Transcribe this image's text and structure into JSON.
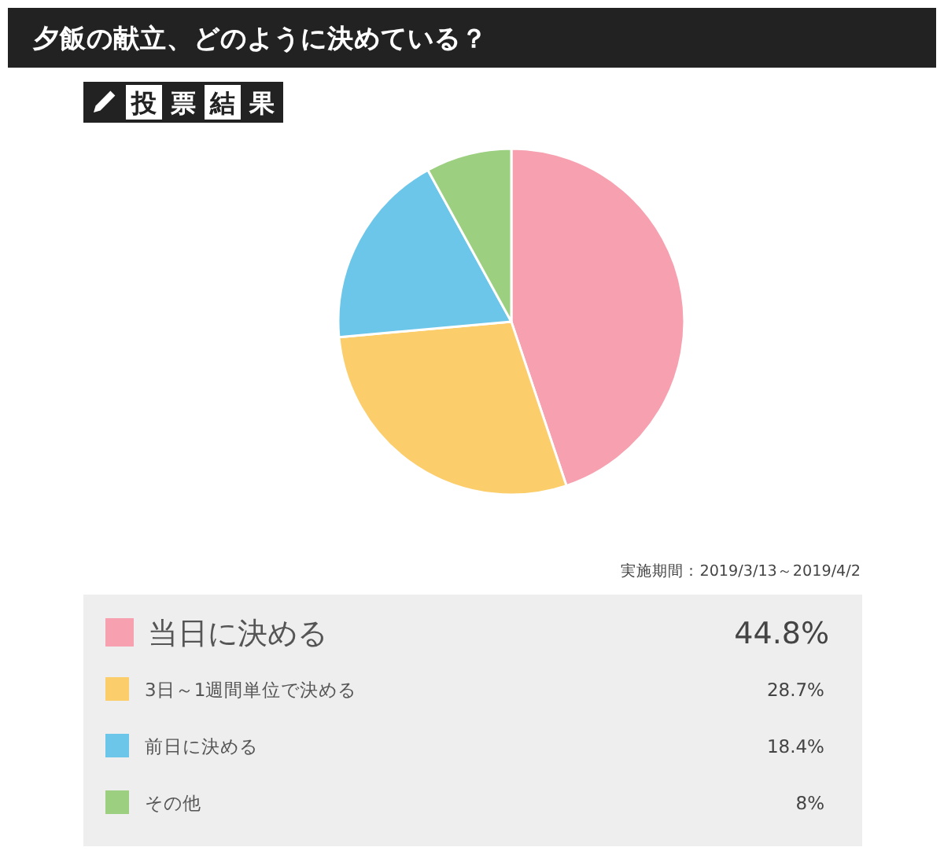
{
  "chart_data": {
    "type": "pie",
    "title": "夕飯の献立、どのように決めている？",
    "subtitle": "投票結果",
    "categories": [
      "当日に決める",
      "3日～1週間単位で決める",
      "前日に決める",
      "その他"
    ],
    "values": [
      44.8,
      28.7,
      18.4,
      8
    ],
    "colors": [
      "#f7a1b0",
      "#fccd6b",
      "#6cc6ea",
      "#9ccf7f"
    ],
    "value_labels": [
      "44.8%",
      "28.7%",
      "18.4%",
      "8%"
    ],
    "legend": "bottom",
    "annotations": [
      "実施期間：2019/3/13～2019/4/2"
    ]
  }
}
